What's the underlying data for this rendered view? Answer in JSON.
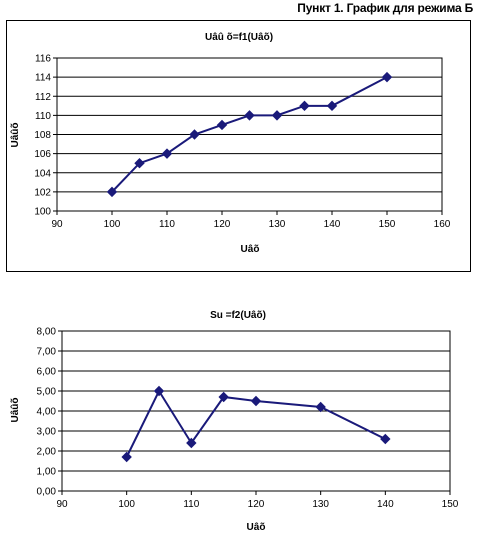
{
  "header": {
    "title": "Пункт 1. График для режима Б"
  },
  "chart_data": [
    {
      "type": "line",
      "title": "Uâû õ=f1(Uâõ)",
      "xlabel": "Uâõ",
      "ylabel": "Uâûõ",
      "xlim": [
        90,
        160
      ],
      "ylim": [
        100,
        116
      ],
      "xticks": [
        "90",
        "100",
        "110",
        "120",
        "130",
        "140",
        "150",
        "160"
      ],
      "yticks": [
        "100",
        "102",
        "104",
        "106",
        "108",
        "110",
        "112",
        "114",
        "116"
      ],
      "grid": "horizontal",
      "legend": "none",
      "marker": "diamond",
      "color": "#1a1a7a",
      "x": [
        100,
        105,
        110,
        115,
        120,
        125,
        130,
        135,
        140,
        150
      ],
      "y": [
        102,
        105,
        106,
        108,
        109,
        110,
        110,
        111,
        111,
        114
      ]
    },
    {
      "type": "line",
      "title": "Su =f2(Uâõ)",
      "xlabel": "Uâõ",
      "ylabel": "Uâûõ",
      "xlim": [
        90,
        150
      ],
      "ylim": [
        0,
        8
      ],
      "xticks": [
        "90",
        "100",
        "110",
        "120",
        "130",
        "140",
        "150"
      ],
      "yticks": [
        "0,00",
        "1,00",
        "2,00",
        "3,00",
        "4,00",
        "5,00",
        "6,00",
        "7,00",
        "8,00"
      ],
      "grid": "horizontal",
      "legend": "none",
      "marker": "diamond",
      "color": "#1a1a7a",
      "x": [
        100,
        105,
        110,
        115,
        120,
        130,
        140
      ],
      "y": [
        1.7,
        5.0,
        2.4,
        4.7,
        4.5,
        4.2,
        2.6
      ]
    }
  ]
}
